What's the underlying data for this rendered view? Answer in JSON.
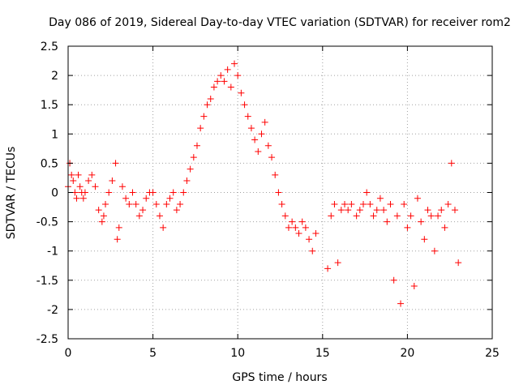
{
  "chart_data": {
    "type": "scatter",
    "title": "Day 086 of 2019, Sidereal Day-to-day VTEC variation (SDTVAR) for receiver rom2",
    "xlabel": "GPS time / hours",
    "ylabel": "SDTVAR / TECUs",
    "xlim": [
      0,
      25
    ],
    "ylim": [
      -2.5,
      2.5
    ],
    "xticks": [
      0,
      5,
      10,
      15,
      20,
      25
    ],
    "xtick_labels": [
      "0",
      "5",
      "10",
      "15",
      "20",
      "25"
    ],
    "yticks": [
      -2.5,
      -2,
      -1.5,
      -1,
      -0.5,
      0,
      0.5,
      1,
      1.5,
      2,
      2.5
    ],
    "ytick_labels": [
      "-2.5",
      "-2",
      "-1.5",
      "-1",
      "-0.5",
      "0",
      "0.5",
      "1",
      "1.5",
      "2",
      "2.5"
    ],
    "grid": true,
    "marker": "+",
    "marker_color": "#ff0000",
    "series": [
      {
        "name": "SDTVAR",
        "x": [
          0.0,
          0.1,
          0.2,
          0.3,
          0.4,
          0.5,
          0.6,
          0.7,
          0.8,
          0.9,
          1.0,
          1.2,
          1.4,
          1.6,
          1.8,
          2.0,
          2.1,
          2.2,
          2.4,
          2.6,
          2.8,
          2.9,
          3.0,
          3.2,
          3.4,
          3.6,
          3.8,
          4.0,
          4.2,
          4.4,
          4.6,
          4.8,
          5.0,
          5.2,
          5.4,
          5.6,
          5.8,
          6.0,
          6.2,
          6.4,
          6.6,
          6.8,
          7.0,
          7.2,
          7.4,
          7.6,
          7.8,
          8.0,
          8.2,
          8.4,
          8.6,
          8.8,
          9.0,
          9.2,
          9.4,
          9.6,
          9.8,
          10.0,
          10.2,
          10.4,
          10.6,
          10.8,
          11.0,
          11.2,
          11.4,
          11.6,
          11.8,
          12.0,
          12.2,
          12.4,
          12.6,
          12.8,
          13.0,
          13.2,
          13.4,
          13.6,
          13.8,
          14.0,
          14.2,
          14.4,
          14.6,
          15.3,
          15.5,
          15.7,
          15.9,
          16.1,
          16.3,
          16.5,
          16.7,
          17.0,
          17.2,
          17.4,
          17.6,
          17.8,
          18.0,
          18.2,
          18.4,
          18.6,
          18.8,
          19.0,
          19.2,
          19.4,
          19.6,
          19.8,
          20.0,
          20.2,
          20.4,
          20.6,
          20.8,
          21.0,
          21.2,
          21.4,
          21.6,
          21.8,
          22.0,
          22.2,
          22.4,
          22.6,
          22.8,
          23.0
        ],
        "y": [
          0.1,
          0.5,
          0.3,
          0.2,
          0.0,
          -0.1,
          0.3,
          0.1,
          0.0,
          -0.1,
          0.0,
          0.2,
          0.3,
          0.1,
          -0.3,
          -0.5,
          -0.4,
          -0.2,
          0.0,
          0.2,
          0.5,
          -0.8,
          -0.6,
          0.1,
          -0.1,
          -0.2,
          0.0,
          -0.2,
          -0.4,
          -0.3,
          -0.1,
          0.0,
          0.0,
          -0.2,
          -0.4,
          -0.6,
          -0.2,
          -0.1,
          0.0,
          -0.3,
          -0.2,
          0.0,
          0.2,
          0.4,
          0.6,
          0.8,
          1.1,
          1.3,
          1.5,
          1.6,
          1.8,
          1.9,
          2.0,
          1.9,
          2.1,
          1.8,
          2.2,
          2.0,
          1.7,
          1.5,
          1.3,
          1.1,
          0.9,
          0.7,
          1.0,
          1.2,
          0.8,
          0.6,
          0.3,
          0.0,
          -0.2,
          -0.4,
          -0.6,
          -0.5,
          -0.6,
          -0.7,
          -0.5,
          -0.6,
          -0.8,
          -1.0,
          -0.7,
          -1.3,
          -0.4,
          -0.2,
          -1.2,
          -0.3,
          -0.2,
          -0.3,
          -0.2,
          -0.4,
          -0.3,
          -0.2,
          0.0,
          -0.2,
          -0.4,
          -0.3,
          -0.1,
          -0.3,
          -0.5,
          -0.2,
          -1.5,
          -0.4,
          -1.9,
          -0.2,
          -0.6,
          -0.4,
          -1.6,
          -0.1,
          -0.5,
          -0.8,
          -0.3,
          -0.4,
          -1.0,
          -0.4,
          -0.3,
          -0.6,
          -0.2,
          0.5,
          -0.3,
          -1.2
        ]
      }
    ]
  }
}
